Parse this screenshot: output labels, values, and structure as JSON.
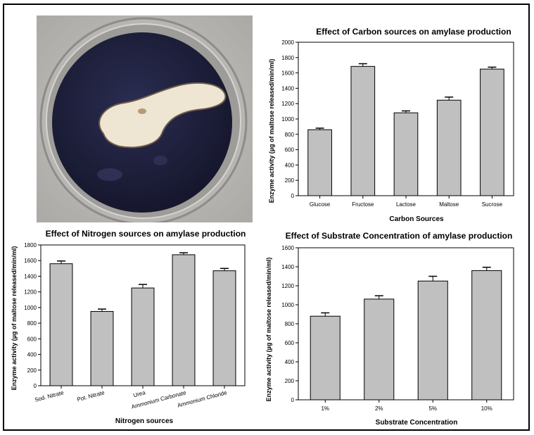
{
  "photo": {
    "plate_color": "#1f2140",
    "zone_color": "#efe5d3"
  },
  "colors": {
    "bar_fill": "#c0c0c0",
    "bar_stroke": "#000000",
    "axis": "#000000"
  },
  "chart_data": [
    {
      "id": "carbon",
      "type": "bar",
      "title": "Effect of Carbon sources on amylase production",
      "xlabel": "Carbon Sources",
      "ylabel": "Enzyme activity (µg of maltose released/min/ml)",
      "categories": [
        "Glucose",
        "Fructose",
        "Lactose",
        "Maltose",
        "Sucrose"
      ],
      "values": [
        860,
        1685,
        1080,
        1245,
        1650
      ],
      "errors": [
        20,
        35,
        25,
        40,
        25
      ],
      "ylim": [
        0,
        2000
      ],
      "yticks": [
        0,
        200,
        400,
        600,
        800,
        1000,
        1200,
        1400,
        1600,
        1800,
        2000
      ],
      "tick_labels_rotated": false,
      "grid": false
    },
    {
      "id": "nitrogen",
      "type": "bar",
      "title": "Effect of Nitrogen sources on amylase production",
      "xlabel": "Nitrogen sources",
      "ylabel": "Enzyme activity (µg of maltose released/min/ml)",
      "categories": [
        "Sod. Nitrate",
        "Pot. Nitrate",
        "Urea",
        "Ammonium Carbonate",
        "Ammonium Chloride"
      ],
      "values": [
        1560,
        950,
        1250,
        1675,
        1470
      ],
      "errors": [
        35,
        30,
        45,
        25,
        30
      ],
      "ylim": [
        0,
        1800
      ],
      "yticks": [
        0,
        200,
        400,
        600,
        800,
        1000,
        1200,
        1400,
        1600,
        1800
      ],
      "tick_labels_rotated": true,
      "grid": false
    },
    {
      "id": "substrate",
      "type": "bar",
      "title": "Effect of Substrate Concentration of amylase production",
      "xlabel": "Substrate Concentration",
      "ylabel": "Enzyme activity (µg of maltose released/min/ml)",
      "categories": [
        "1%",
        "2%",
        "5%",
        "10%"
      ],
      "values": [
        880,
        1060,
        1250,
        1360
      ],
      "errors": [
        35,
        35,
        50,
        35
      ],
      "ylim": [
        0,
        1600
      ],
      "yticks": [
        0,
        200,
        400,
        600,
        800,
        1000,
        1200,
        1400,
        1600
      ],
      "tick_labels_rotated": false,
      "grid": false
    }
  ]
}
